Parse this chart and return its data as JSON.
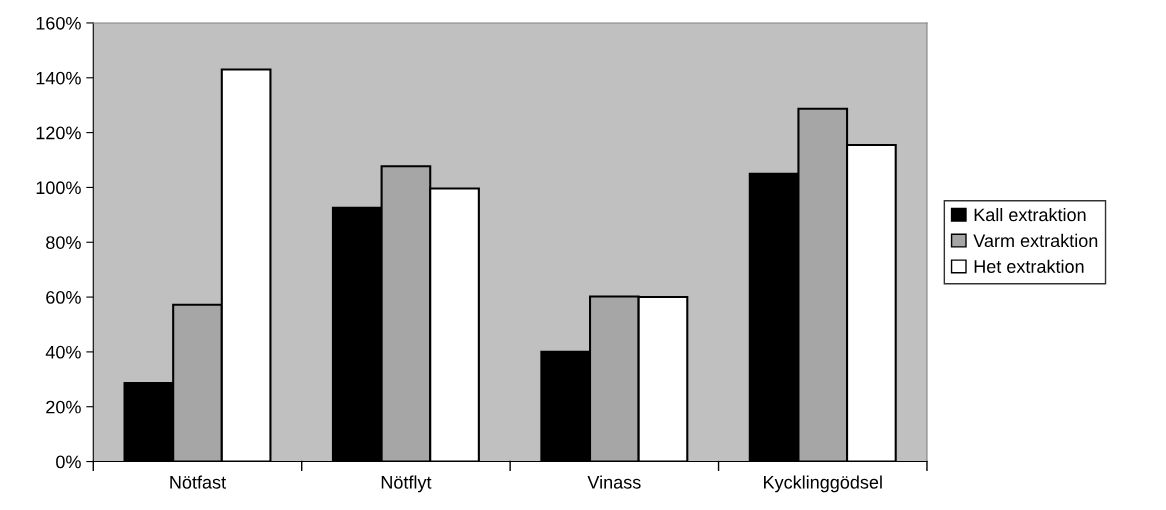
{
  "chart_data": {
    "type": "bar",
    "categories": [
      "Nötfast",
      "Nötflyt",
      "Vinass",
      "Kycklinggödsel"
    ],
    "series": [
      {
        "name": "Kall extraktion",
        "color": "#000000",
        "values": [
          28.6,
          92.6,
          40,
          105
        ]
      },
      {
        "name": "Varm extraktion",
        "color": "#a6a6a6",
        "values": [
          57.2,
          107.7,
          60.2,
          128.7
        ]
      },
      {
        "name": "Het extraktion",
        "color": "#ffffff",
        "values": [
          143,
          99.6,
          60,
          115.5
        ]
      }
    ],
    "ylim": [
      0,
      160
    ],
    "yticks": [
      {
        "value": 0,
        "label": "0%"
      },
      {
        "value": 20,
        "label": "20%"
      },
      {
        "value": 40,
        "label": "40%"
      },
      {
        "value": 60,
        "label": "60%"
      },
      {
        "value": 80,
        "label": "80%"
      },
      {
        "value": 100,
        "label": "100%"
      },
      {
        "value": 120,
        "label": "120%"
      },
      {
        "value": 140,
        "label": "140%"
      },
      {
        "value": 160,
        "label": "160%"
      }
    ],
    "grid": false,
    "legend": "right"
  }
}
